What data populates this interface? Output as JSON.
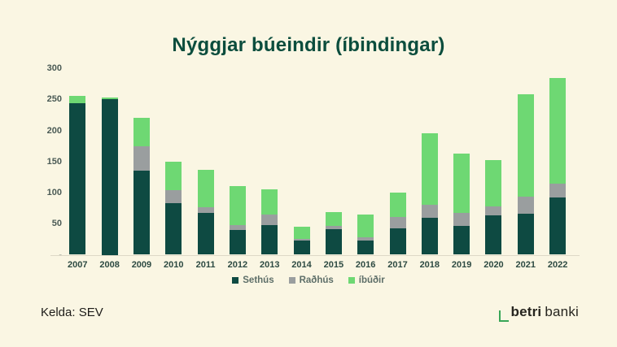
{
  "title": "Nýggjar búeindir (íbindingar)",
  "source": "Kelda: SEV",
  "logo": {
    "bold": "betri",
    "regular": "banki"
  },
  "colors": {
    "background": "#faf6e3",
    "title": "#0b4d3d",
    "sethus": "#0e4a42",
    "radhus": "#9a9e9f",
    "ibudir": "#6ed873",
    "axis_text": "#4a5a55",
    "year_text": "#2d4a42",
    "legend_text": "#5d6e68",
    "baseline": "#ddd8c6",
    "logo_green": "#38a657",
    "logo_text": "#26251f"
  },
  "chart_data": {
    "type": "bar",
    "stacked": true,
    "title": "Nýggjar búeindir (íbindingar)",
    "categories": [
      "2007",
      "2008",
      "2009",
      "2010",
      "2011",
      "2012",
      "2013",
      "2014",
      "2015",
      "2016",
      "2017",
      "2018",
      "2019",
      "2020",
      "2021",
      "2022"
    ],
    "series": [
      {
        "name": "Sethús",
        "color_key": "sethus",
        "values": [
          244,
          250,
          135,
          83,
          67,
          40,
          48,
          23,
          41,
          23,
          43,
          59,
          47,
          64,
          66,
          92
        ]
      },
      {
        "name": "Raðhús",
        "color_key": "radhus",
        "values": [
          0,
          0,
          39,
          21,
          10,
          8,
          17,
          3,
          5,
          5,
          18,
          21,
          20,
          14,
          27,
          23
        ]
      },
      {
        "name": "íbúðir",
        "color_key": "ibudir",
        "values": [
          12,
          3,
          46,
          46,
          59,
          62,
          40,
          19,
          22,
          37,
          39,
          115,
          96,
          74,
          165,
          169
        ]
      }
    ],
    "totals": [
      256,
      253,
      220,
      150,
      136,
      110,
      105,
      45,
      68,
      65,
      100,
      195,
      163,
      152,
      258,
      284
    ],
    "ylim": [
      0,
      300
    ],
    "yticks": [
      "300",
      "250",
      "200",
      "150",
      "100",
      "50",
      "-"
    ],
    "ytick_values": [
      300,
      250,
      200,
      150,
      100,
      50,
      0
    ],
    "grid": false,
    "legend_position": "bottom"
  }
}
